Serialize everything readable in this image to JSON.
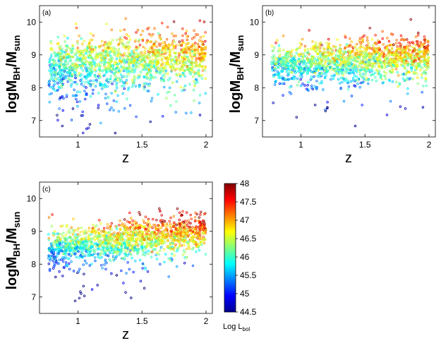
{
  "chart_data": [
    {
      "type": "scatter",
      "panel_label": "(a)",
      "xlabel": "z",
      "ylabel": {
        "main": "logM",
        "sub1": "BH",
        "sep": "/M",
        "sub2": "sun"
      },
      "xlim": [
        0.7,
        2.05
      ],
      "ylim": [
        6.5,
        10.5
      ],
      "xticks": [
        1,
        1.5,
        2
      ],
      "xtick_labels": [
        "1",
        "1.5",
        "2"
      ],
      "yticks": [
        7,
        8,
        9,
        10
      ],
      "ytick_labels": [
        "7",
        "8",
        "9",
        "10"
      ],
      "n_points": 1500,
      "x_range": [
        0.77,
        2.0
      ],
      "ridge": {
        "m0": 8.78,
        "slope": 0.28,
        "scatter": 0.38,
        "low_tail_frac": 0.18
      },
      "color_encodes": "Log L_bol",
      "mass_color_coupling": 0.55
    },
    {
      "type": "scatter",
      "panel_label": "(b)",
      "xlabel": "z",
      "ylabel": {
        "main": "logM",
        "sub1": "BH",
        "sep": "/M",
        "sub2": "sun"
      },
      "xlim": [
        0.7,
        2.05
      ],
      "ylim": [
        6.5,
        10.5
      ],
      "xticks": [
        1,
        1.5,
        2
      ],
      "xtick_labels": [
        "1",
        "1.5",
        "2"
      ],
      "yticks": [
        7,
        8,
        9,
        10
      ],
      "ytick_labels": [
        "7",
        "8",
        "9",
        "10"
      ],
      "n_points": 1500,
      "x_range": [
        0.77,
        2.0
      ],
      "ridge": {
        "m0": 8.78,
        "slope": 0.25,
        "scatter": 0.3,
        "low_tail_frac": 0.08
      },
      "color_encodes": "Log L_bol",
      "mass_color_coupling": 0.8
    },
    {
      "type": "scatter",
      "panel_label": "(c)",
      "xlabel": "z",
      "ylabel": {
        "main": "logM",
        "sub1": "BH",
        "sep": "/M",
        "sub2": "sun"
      },
      "xlim": [
        0.7,
        2.05
      ],
      "ylim": [
        6.5,
        10.5
      ],
      "xticks": [
        1,
        1.5,
        2
      ],
      "xtick_labels": [
        "1",
        "1.5",
        "2"
      ],
      "yticks": [
        7,
        8,
        9,
        10
      ],
      "ytick_labels": [
        "7",
        "8",
        "9",
        "10"
      ],
      "n_points": 1500,
      "x_range": [
        0.77,
        2.0
      ],
      "ridge": {
        "m0": 8.65,
        "slope": 0.45,
        "scatter": 0.28,
        "low_tail_frac": 0.05
      },
      "color_encodes": "Log L_bol",
      "mass_color_coupling": 1.0
    }
  ],
  "colorbar": {
    "label_main": "Log L",
    "label_sub": "bol",
    "range": [
      44.5,
      48
    ],
    "ticks": [
      44.5,
      45,
      45.5,
      46,
      46.5,
      47,
      47.5,
      48
    ],
    "tick_labels": [
      "44.5",
      "45",
      "45.5",
      "46",
      "46.5",
      "47",
      "47.5",
      "48"
    ],
    "colormap": "jet"
  }
}
